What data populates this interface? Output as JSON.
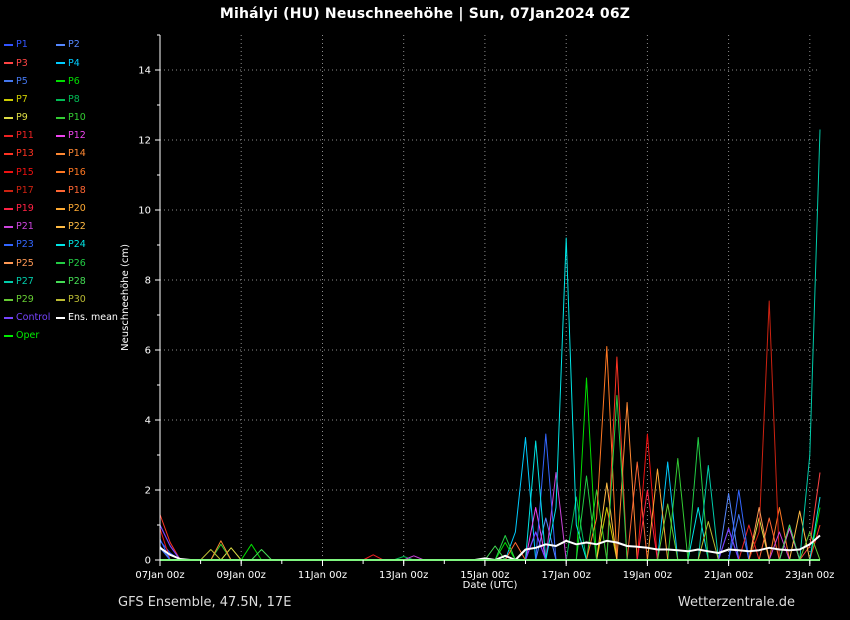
{
  "title": "Mihályi  (HU)  Neuschneehöhe | Sun, 07Jan2024 06Z",
  "footer_left": "GFS Ensemble, 47.5N, 17E",
  "footer_right": "Wetterzentrale.de",
  "colors": {
    "background": "#000000",
    "axis": "#ffffff",
    "grid": "#ffffff",
    "text": "#ffffff"
  },
  "chart_data": {
    "type": "line",
    "title": "Mihályi  (HU)  Neuschneehöhe | Sun, 07Jan2024 06Z",
    "xlabel": "Date (UTC)",
    "ylabel": "Neuschneehöhe (cm)",
    "grid": "dotted",
    "legend_position": "outside-left",
    "x_step_hours": 6,
    "x_index_range": [
      0,
      65
    ],
    "ylim": [
      0,
      15
    ],
    "y_ticks": [
      0,
      2,
      4,
      6,
      8,
      10,
      12,
      14
    ],
    "x_minor_step": 4,
    "x_ticks": [
      {
        "i": 0,
        "label": "07Jan 00z"
      },
      {
        "i": 8,
        "label": "09Jan 00z"
      },
      {
        "i": 16,
        "label": "11Jan 00z"
      },
      {
        "i": 24,
        "label": "13Jan 00z"
      },
      {
        "i": 32,
        "label": "15Jan 00z"
      },
      {
        "i": 40,
        "label": "17Jan 00z"
      },
      {
        "i": 48,
        "label": "19Jan 00z"
      },
      {
        "i": 56,
        "label": "21Jan 00z"
      },
      {
        "i": 64,
        "label": "23Jan 00z"
      }
    ],
    "series": [
      {
        "name": "P1",
        "color": "#3355ff",
        "width": 1,
        "points": [
          [
            0,
            0.55
          ],
          [
            1,
            0.2
          ],
          [
            62,
            1.0
          ]
        ]
      },
      {
        "name": "P2",
        "color": "#5588ff",
        "width": 1,
        "points": [
          [
            0,
            0.4
          ],
          [
            38,
            1.2
          ],
          [
            56,
            1.9
          ]
        ]
      },
      {
        "name": "P3",
        "color": "#ff4444",
        "width": 1,
        "points": [
          [
            64,
            0.4
          ],
          [
            65,
            2.5
          ]
        ]
      },
      {
        "name": "P4",
        "color": "#00ccff",
        "width": 1,
        "points": [
          [
            35,
            0.8
          ],
          [
            36,
            3.5
          ],
          [
            50,
            2.8
          ]
        ]
      },
      {
        "name": "P5",
        "color": "#4477ee",
        "width": 1,
        "points": [
          [
            0,
            0.35
          ],
          [
            57,
            1.3
          ]
        ]
      },
      {
        "name": "P6",
        "color": "#00dd00",
        "width": 1,
        "points": [
          [
            9,
            0.45
          ],
          [
            34,
            0.5
          ],
          [
            42,
            5.2
          ],
          [
            65,
            1.5
          ]
        ]
      },
      {
        "name": "P7",
        "color": "#cccc00",
        "width": 1,
        "points": [
          [
            44,
            1.5
          ]
        ]
      },
      {
        "name": "P8",
        "color": "#00bb55",
        "width": 1,
        "points": [
          [
            24,
            0.1
          ],
          [
            41,
            1.8
          ]
        ]
      },
      {
        "name": "P9",
        "color": "#dddd44",
        "width": 1,
        "points": [
          [
            7,
            0.35
          ],
          [
            59,
            1.2
          ]
        ]
      },
      {
        "name": "P10",
        "color": "#33cc33",
        "width": 1,
        "points": [
          [
            6,
            0.45
          ],
          [
            43,
            2.0
          ],
          [
            51,
            2.9
          ]
        ]
      },
      {
        "name": "P11",
        "color": "#ee2222",
        "width": 1,
        "points": [
          [
            21,
            0.15
          ],
          [
            58,
            1.0
          ]
        ]
      },
      {
        "name": "P12",
        "color": "#ee44ee",
        "width": 1,
        "points": [
          [
            37,
            1.5
          ],
          [
            62,
            0.9
          ]
        ]
      },
      {
        "name": "P13",
        "color": "#ff3322",
        "width": 1,
        "points": [
          [
            0,
            1.3
          ],
          [
            1,
            0.5
          ],
          [
            45,
            5.8
          ],
          [
            65,
            1.0
          ]
        ]
      },
      {
        "name": "P14",
        "color": "#ff8833",
        "width": 1,
        "points": [
          [
            6,
            0.55
          ],
          [
            46,
            4.5
          ]
        ]
      },
      {
        "name": "P15",
        "color": "#ee1111",
        "width": 1,
        "points": [
          [
            0,
            0.9
          ],
          [
            48,
            3.6
          ]
        ]
      },
      {
        "name": "P16",
        "color": "#ff7722",
        "width": 1,
        "points": [
          [
            43,
            1.2
          ],
          [
            44,
            6.1
          ],
          [
            61,
            1.5
          ]
        ]
      },
      {
        "name": "P17",
        "color": "#cc2211",
        "width": 1,
        "points": [
          [
            59,
            0.8
          ],
          [
            60,
            7.4
          ]
        ]
      },
      {
        "name": "P18",
        "color": "#ff6633",
        "width": 1,
        "points": [
          [
            35,
            0.5
          ],
          [
            47,
            2.8
          ],
          [
            60,
            1.2
          ]
        ]
      },
      {
        "name": "P19",
        "color": "#ff2244",
        "width": 1,
        "points": [
          [
            48,
            2.0
          ]
        ]
      },
      {
        "name": "P20",
        "color": "#ffaa33",
        "width": 1,
        "points": [
          [
            49,
            2.6
          ]
        ]
      },
      {
        "name": "P21",
        "color": "#cc44dd",
        "width": 1,
        "points": [
          [
            25,
            0.12
          ],
          [
            39,
            2.5
          ],
          [
            61,
            0.8
          ]
        ]
      },
      {
        "name": "P22",
        "color": "#ffbb44",
        "width": 1,
        "points": [
          [
            44,
            2.2
          ],
          [
            63,
            1.4
          ]
        ]
      },
      {
        "name": "P23",
        "color": "#3366ff",
        "width": 1,
        "points": [
          [
            0,
            0.6
          ],
          [
            38,
            3.6
          ],
          [
            57,
            2.0
          ]
        ]
      },
      {
        "name": "P24",
        "color": "#00e5e5",
        "width": 1,
        "points": [
          [
            37,
            3.4
          ],
          [
            39,
            1.5
          ],
          [
            40,
            9.2
          ],
          [
            41,
            1.0
          ],
          [
            53,
            1.5
          ],
          [
            65,
            1.8
          ]
        ]
      },
      {
        "name": "P25",
        "color": "#ff9955",
        "width": 1,
        "points": [
          [
            59,
            1.5
          ]
        ]
      },
      {
        "name": "P26",
        "color": "#22cc44",
        "width": 1,
        "points": [
          [
            34,
            0.7
          ],
          [
            42,
            2.4
          ],
          [
            45,
            4.7
          ],
          [
            53,
            3.5
          ]
        ]
      },
      {
        "name": "P27",
        "color": "#00ccaa",
        "width": 1,
        "points": [
          [
            54,
            2.7
          ],
          [
            64,
            3.0
          ],
          [
            65,
            12.3
          ]
        ]
      },
      {
        "name": "P28",
        "color": "#44dd55",
        "width": 1,
        "points": [
          [
            10,
            0.3
          ],
          [
            33,
            0.4
          ],
          [
            62,
            1.0
          ]
        ]
      },
      {
        "name": "P29",
        "color": "#66cc33",
        "width": 1,
        "points": [
          [
            50,
            1.6
          ],
          [
            64,
            0.8
          ]
        ]
      },
      {
        "name": "P30",
        "color": "#bbbb33",
        "width": 1,
        "points": [
          [
            5,
            0.3
          ],
          [
            54,
            1.1
          ]
        ]
      },
      {
        "name": "Control",
        "color": "#7744ff",
        "width": 1.2,
        "points": [
          [
            0,
            1.0
          ],
          [
            1,
            0.4
          ],
          [
            37,
            0.8
          ],
          [
            56,
            0.9
          ]
        ]
      },
      {
        "name": "Ens. mean",
        "color": "#ffffff",
        "width": 2,
        "points": [
          [
            0,
            0.35
          ],
          [
            1,
            0.15
          ],
          [
            2,
            0.03
          ],
          [
            32,
            0.05
          ],
          [
            34,
            0.12
          ],
          [
            36,
            0.3
          ],
          [
            37,
            0.35
          ],
          [
            38,
            0.45
          ],
          [
            39,
            0.4
          ],
          [
            40,
            0.55
          ],
          [
            41,
            0.45
          ],
          [
            42,
            0.5
          ],
          [
            43,
            0.45
          ],
          [
            44,
            0.55
          ],
          [
            45,
            0.5
          ],
          [
            46,
            0.4
          ],
          [
            47,
            0.38
          ],
          [
            48,
            0.35
          ],
          [
            49,
            0.3
          ],
          [
            50,
            0.3
          ],
          [
            51,
            0.28
          ],
          [
            52,
            0.25
          ],
          [
            53,
            0.3
          ],
          [
            54,
            0.25
          ],
          [
            55,
            0.2
          ],
          [
            56,
            0.3
          ],
          [
            57,
            0.28
          ],
          [
            58,
            0.25
          ],
          [
            59,
            0.28
          ],
          [
            60,
            0.35
          ],
          [
            61,
            0.3
          ],
          [
            62,
            0.28
          ],
          [
            63,
            0.3
          ],
          [
            64,
            0.45
          ],
          [
            65,
            0.7
          ]
        ]
      },
      {
        "name": "Oper",
        "color": "#00ee00",
        "width": 2,
        "points": []
      }
    ]
  }
}
